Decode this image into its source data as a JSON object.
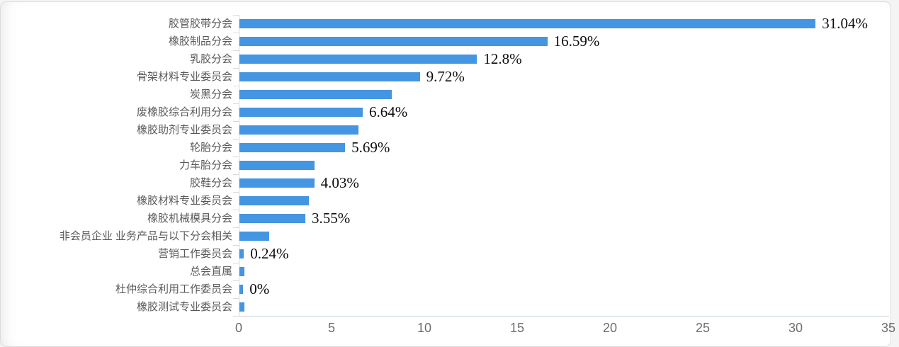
{
  "chart_data": {
    "type": "bar",
    "orientation": "horizontal",
    "title": "",
    "xlabel": "",
    "ylabel": "",
    "legend": "none",
    "grid": "off",
    "xlim": [
      0,
      35
    ],
    "x_ticks": [
      "0",
      "5",
      "10",
      "15",
      "20",
      "25",
      "30",
      "35"
    ],
    "x_tick_values": [
      0,
      5,
      10,
      15,
      20,
      25,
      30,
      35
    ],
    "bar_color": "#4495e2",
    "categories": [
      "胶管胶带分会",
      "橡胶制品分会",
      "乳胶分会",
      "骨架材料专业委员会",
      "炭黑分会",
      "废橡胶综合利用分会",
      "橡胶助剂专业委员会",
      "轮胎分会",
      "力车胎分会",
      "胶鞋分会",
      "橡胶材料专业委员会",
      "橡胶机械模具分会",
      "非会员企业 业务产品与以下分会相关",
      "营销工作委员会",
      "总会直属",
      "杜仲综合利用工作委员会",
      "橡胶测试专业委员会"
    ],
    "values": [
      31.04,
      16.59,
      12.8,
      9.72,
      8.2,
      6.64,
      6.4,
      5.69,
      4.05,
      4.03,
      3.75,
      3.55,
      1.6,
      0.24,
      0.25,
      0.2,
      0.27
    ],
    "data_labels": [
      "31.04%",
      "16.59%",
      "12.8%",
      "9.72%",
      "",
      "6.64%",
      "",
      "5.69%",
      "",
      "4.03%",
      "",
      "3.55%",
      "",
      "0.24%",
      "",
      "0%",
      ""
    ]
  },
  "colors": {
    "bar": "#4495e2",
    "category_text": "#595959",
    "axis_text": "#6e6e6e",
    "y_axis_line": "#d9d9d9",
    "x_axis_line": "#c9d6df",
    "card_border": "#dcdcdc",
    "background": "#ffffff"
  }
}
